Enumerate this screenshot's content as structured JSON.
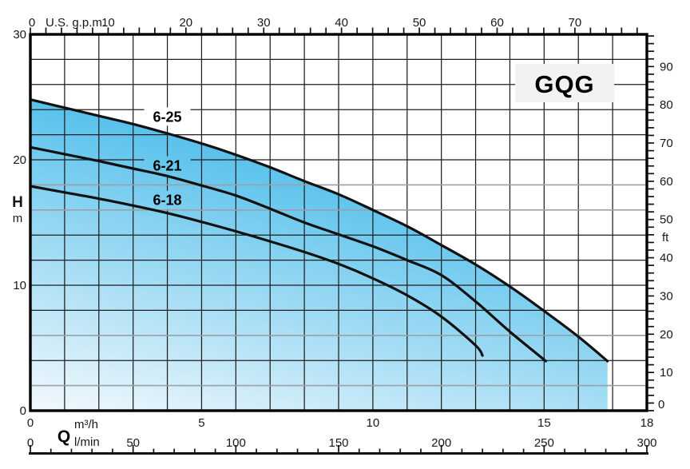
{
  "chart_data": {
    "type": "line",
    "title": "GQG",
    "top_axis": {
      "unit": "U.S. g.p.m.",
      "tick_labels": [
        0,
        10,
        20,
        30,
        40,
        50,
        60,
        70
      ],
      "minor_step_gpm": 2,
      "max_gpm": 79,
      "gpm_per_m3h": 4.40287
    },
    "y_axis_left": {
      "label": "H",
      "unit": "m",
      "tick_labels": [
        0,
        10,
        20,
        30
      ],
      "range_m": [
        0,
        30
      ],
      "grid_step_m": 2,
      "gray_grid_m": [
        18,
        16,
        6,
        2
      ]
    },
    "y_axis_right": {
      "unit": "ft",
      "tick_labels": [
        0,
        10,
        20,
        30,
        40,
        50,
        60,
        70,
        80,
        90
      ],
      "minor_step_ft": 2,
      "max_ft": 98,
      "ft_per_m": 3.28084
    },
    "x_axis_bottom": {
      "label": "Q",
      "unit_primary": "m³/h",
      "unit_secondary": "l/min",
      "ticks_m3h": [
        0,
        5,
        10,
        15,
        18
      ],
      "range_m3h": [
        0,
        18
      ],
      "grid_step_m3h": 1,
      "ticks_lmin": [
        0,
        50,
        100,
        150,
        200,
        250,
        300
      ],
      "range_lmin": [
        0,
        300
      ],
      "ruler_minor_step_lmin": 10,
      "ruler_major_step_lmin": 50
    },
    "series": [
      {
        "name": "6-25",
        "points_q_h": [
          [
            0,
            24.8
          ],
          [
            1,
            24.15
          ],
          [
            2,
            23.5
          ],
          [
            3,
            22.85
          ],
          [
            4,
            22.1
          ],
          [
            5,
            21.3
          ],
          [
            6,
            20.4
          ],
          [
            7,
            19.4
          ],
          [
            8,
            18.3
          ],
          [
            9,
            17.25
          ],
          [
            10,
            16.0
          ],
          [
            11,
            14.7
          ],
          [
            12,
            13.2
          ],
          [
            13,
            11.65
          ],
          [
            14,
            9.9
          ],
          [
            15,
            7.95
          ],
          [
            16,
            5.9
          ],
          [
            16.85,
            3.95
          ]
        ]
      },
      {
        "name": "6-21",
        "points_q_h": [
          [
            0,
            21.0
          ],
          [
            1,
            20.45
          ],
          [
            2,
            19.9
          ],
          [
            3,
            19.3
          ],
          [
            4,
            18.7
          ],
          [
            5,
            17.95
          ],
          [
            6,
            17.15
          ],
          [
            7,
            16.1
          ],
          [
            8,
            15.0
          ],
          [
            9,
            14.05
          ],
          [
            10,
            13.1
          ],
          [
            11,
            12.0
          ],
          [
            12,
            10.8
          ],
          [
            13,
            8.7
          ],
          [
            14,
            6.3
          ],
          [
            15.05,
            3.95
          ]
        ]
      },
      {
        "name": "6-18",
        "points_q_h": [
          [
            0,
            17.9
          ],
          [
            1,
            17.4
          ],
          [
            2,
            16.9
          ],
          [
            3,
            16.35
          ],
          [
            4,
            15.75
          ],
          [
            5,
            15.05
          ],
          [
            6,
            14.3
          ],
          [
            7,
            13.5
          ],
          [
            8,
            12.65
          ],
          [
            9,
            11.7
          ],
          [
            10,
            10.55
          ],
          [
            11,
            9.2
          ],
          [
            12,
            7.5
          ],
          [
            13,
            5.2
          ],
          [
            13.2,
            4.4
          ]
        ]
      }
    ],
    "curve_labels": [
      {
        "text": "6-25",
        "q": 4.0,
        "h": 23.45,
        "bg": "#ffffff"
      },
      {
        "text": "6-21",
        "q": 4.0,
        "h": 19.55,
        "bg": "area"
      },
      {
        "text": "6-18",
        "q": 4.0,
        "h": 16.8,
        "bg": "area"
      }
    ],
    "colors": {
      "fill_top": "#57c1ec",
      "fill_bottom": "#f3f9fd",
      "curve": "#111111",
      "grid": "#1f1f1f",
      "grid_gray": "#9aa0a6",
      "text": "#15181c",
      "title_bg": "#f2f2f2",
      "border": "#000000"
    }
  }
}
